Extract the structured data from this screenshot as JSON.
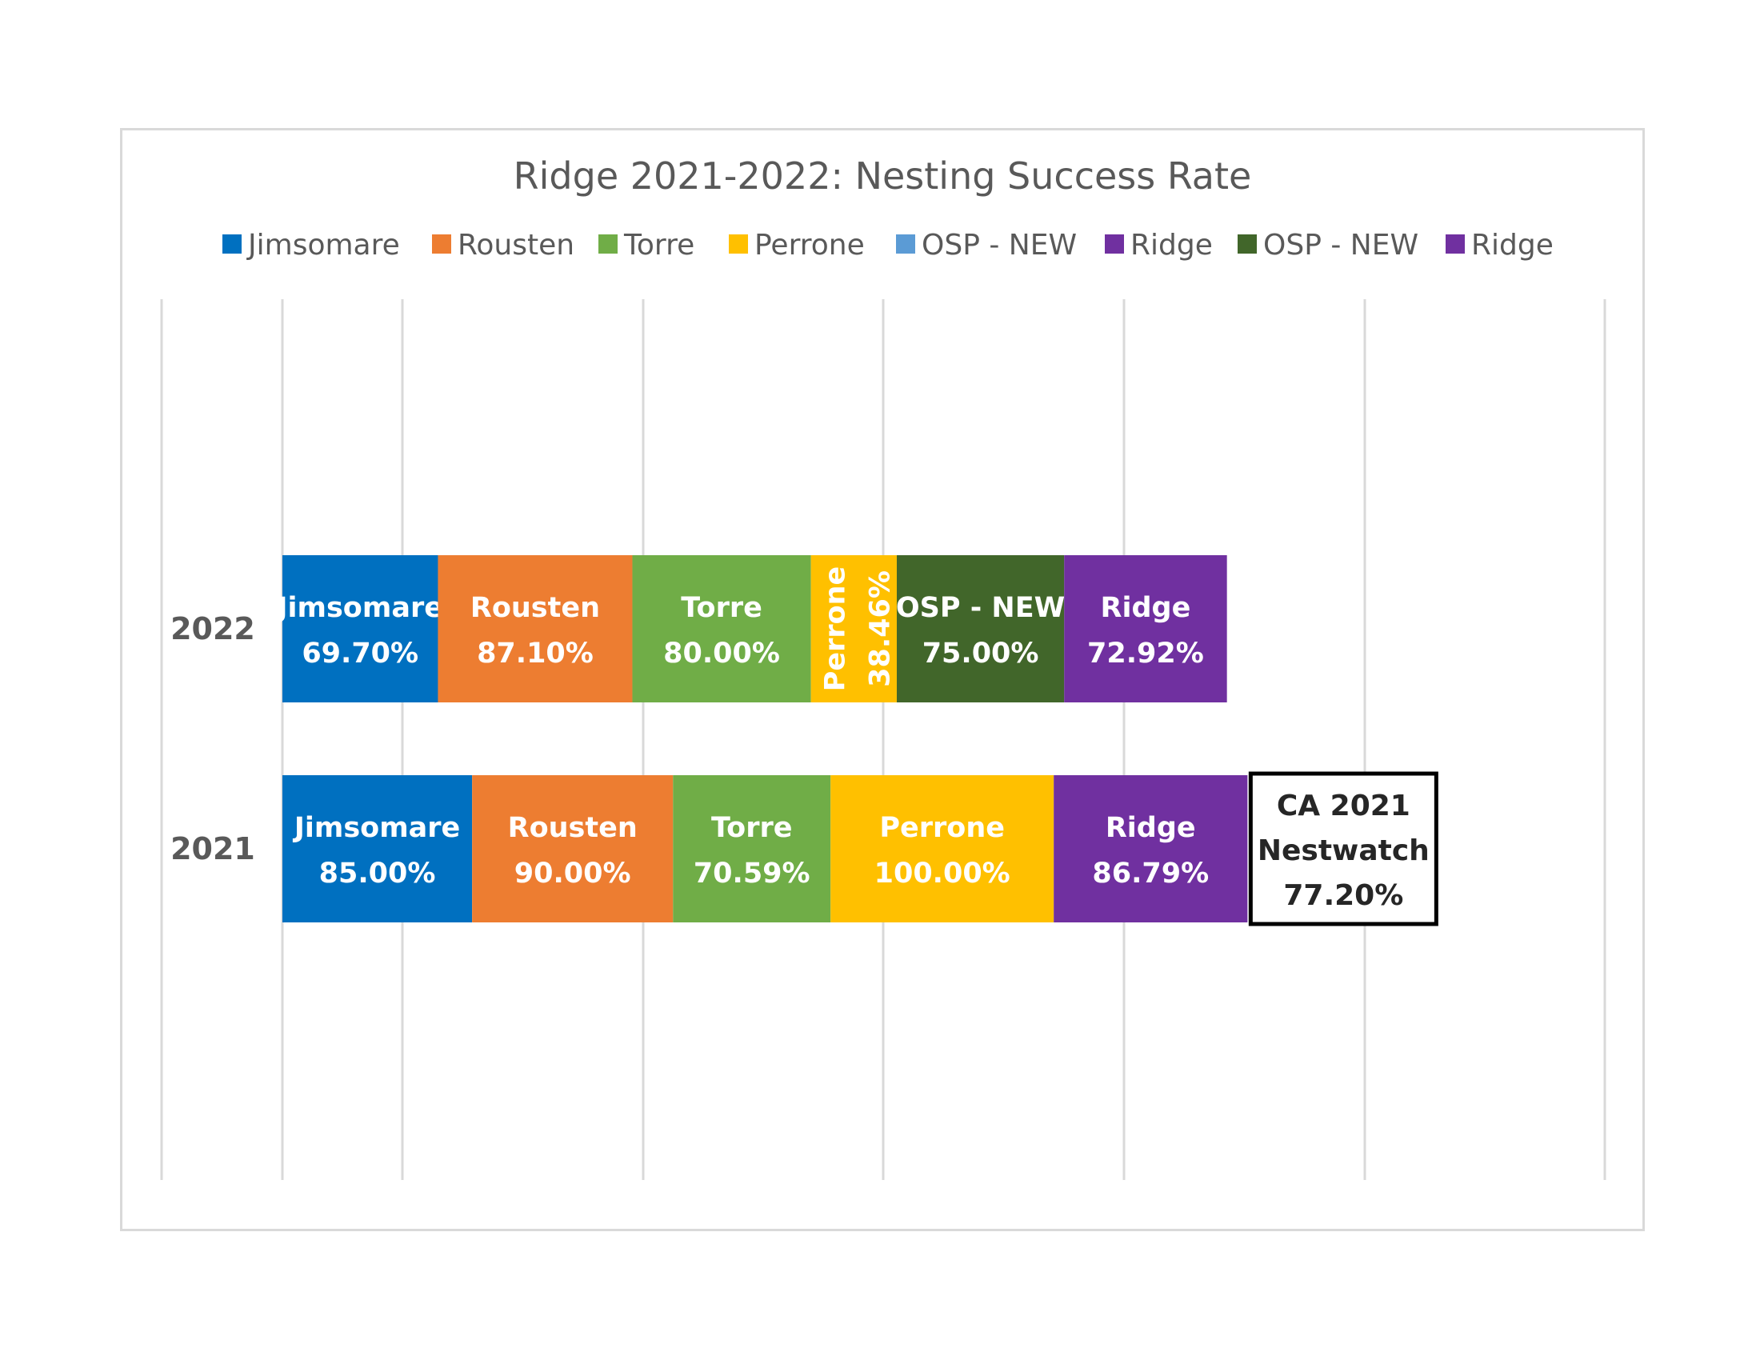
{
  "chart_data": {
    "type": "bar",
    "orientation": "horizontal",
    "stacked": true,
    "title": "Ridge 2021-2022: Nesting Success Rate",
    "legend_position": "top",
    "grid": true,
    "legend": [
      {
        "name": "Jimsomare",
        "color": "#0070C0"
      },
      {
        "name": "Rousten",
        "color": "#ED7D31"
      },
      {
        "name": "Torre",
        "color": "#70AD47"
      },
      {
        "name": "Perrone",
        "color": "#FFC000"
      },
      {
        "name": "OSP - NEW",
        "color": "#5B9BD5"
      },
      {
        "name": "Ridge",
        "color": "#7030A0"
      },
      {
        "name": "OSP - NEW",
        "color": "#41662A"
      },
      {
        "name": "Ridge",
        "color": "#7030A0"
      }
    ],
    "categories": [
      "2022",
      "2021"
    ],
    "rows": [
      {
        "category": "2022",
        "segments": [
          {
            "name": "Jimsomare",
            "label": "69.70%",
            "value": 69.7,
            "color": "#0070C0"
          },
          {
            "name": "Rousten",
            "label": "87.10%",
            "value": 87.1,
            "color": "#ED7D31"
          },
          {
            "name": "Torre",
            "label": "80.00%",
            "value": 80.0,
            "color": "#70AD47"
          },
          {
            "name": "Perrone",
            "label": "38.46%",
            "value": 38.46,
            "color": "#FFC000",
            "rotated": true
          },
          {
            "name": "OSP - NEW",
            "label": "75.00%",
            "value": 75.0,
            "color": "#41662A"
          },
          {
            "name": "Ridge",
            "label": "72.92%",
            "value": 72.92,
            "color": "#7030A0"
          }
        ]
      },
      {
        "category": "2021",
        "segments": [
          {
            "name": "Jimsomare",
            "label": "85.00%",
            "value": 85.0,
            "color": "#0070C0"
          },
          {
            "name": "Rousten",
            "label": "90.00%",
            "value": 90.0,
            "color": "#ED7D31"
          },
          {
            "name": "Torre",
            "label": "70.59%",
            "value": 70.59,
            "color": "#70AD47"
          },
          {
            "name": "Perrone",
            "label": "100.00%",
            "value": 100.0,
            "color": "#FFC000"
          },
          {
            "name": "Ridge",
            "label": "86.79%",
            "value": 86.79,
            "color": "#7030A0"
          }
        ]
      }
    ],
    "annotation": {
      "lines": [
        "CA 2021",
        "Nestwatch",
        "77.20%"
      ],
      "value": 77.2
    }
  }
}
